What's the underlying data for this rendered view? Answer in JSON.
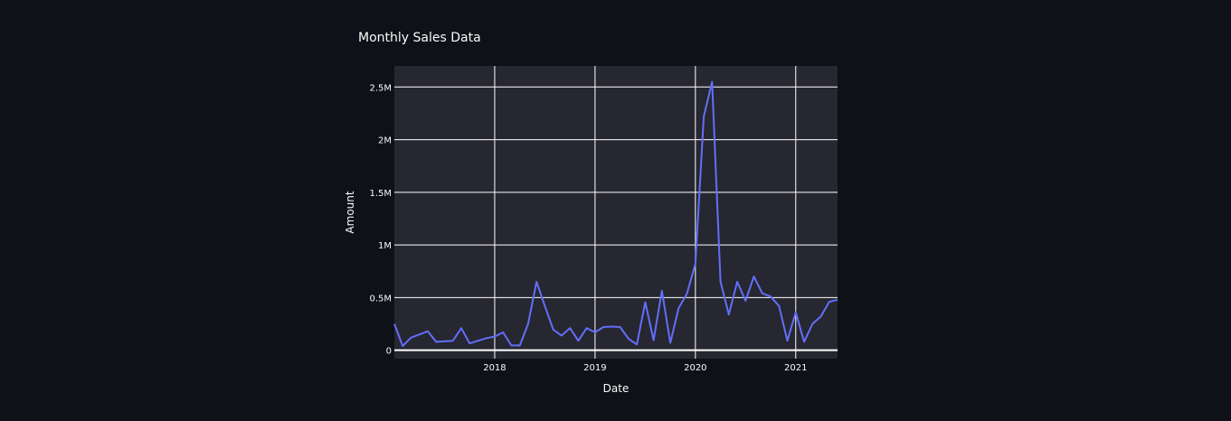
{
  "chart_data": {
    "type": "line",
    "title": "Monthly Sales Data",
    "xlabel": "Date",
    "ylabel": "Amount",
    "x_axis_type": "date",
    "xlim": [
      "2017-01",
      "2021-06"
    ],
    "ylim": [
      -80000,
      2700000
    ],
    "grid": true,
    "legend": "none",
    "x_ticks": [
      {
        "value": "2018-01",
        "label": "2018"
      },
      {
        "value": "2019-01",
        "label": "2019"
      },
      {
        "value": "2020-01",
        "label": "2020"
      },
      {
        "value": "2021-01",
        "label": "2021"
      }
    ],
    "y_ticks": [
      {
        "value": 0,
        "label": "0"
      },
      {
        "value": 500000,
        "label": "0.5M"
      },
      {
        "value": 1000000,
        "label": "1M"
      },
      {
        "value": 1500000,
        "label": "1.5M"
      },
      {
        "value": 2000000,
        "label": "2M"
      },
      {
        "value": 2500000,
        "label": "2.5M"
      }
    ],
    "colors": {
      "page_background": "#0e1117",
      "plot_background": "#262730",
      "grid": "#ffffff",
      "zero_line": "#ffffff",
      "line": "#636efa",
      "text": "#fafafa"
    },
    "series": [
      {
        "x": [
          "2017-01",
          "2017-02",
          "2017-03",
          "2017-04",
          "2017-05",
          "2017-06",
          "2017-07",
          "2017-08",
          "2017-09",
          "2017-10",
          "2017-11",
          "2017-12",
          "2018-01",
          "2018-02",
          "2018-03",
          "2018-04",
          "2018-05",
          "2018-06",
          "2018-07",
          "2018-08",
          "2018-09",
          "2018-10",
          "2018-11",
          "2018-12",
          "2019-01",
          "2019-02",
          "2019-03",
          "2019-04",
          "2019-05",
          "2019-06",
          "2019-07",
          "2019-08",
          "2019-09",
          "2019-10",
          "2019-11",
          "2019-12",
          "2020-01",
          "2020-02",
          "2020-03",
          "2020-04",
          "2020-05",
          "2020-06",
          "2020-07",
          "2020-08",
          "2020-09",
          "2020-10",
          "2020-11",
          "2020-12",
          "2021-01",
          "2021-02",
          "2021-03",
          "2021-04",
          "2021-05",
          "2021-06"
        ],
        "y": [
          250000,
          40000,
          120000,
          150000,
          180000,
          80000,
          85000,
          90000,
          210000,
          65000,
          90000,
          115000,
          130000,
          170000,
          45000,
          45000,
          250000,
          650000,
          420000,
          195000,
          140000,
          210000,
          90000,
          210000,
          170000,
          220000,
          225000,
          220000,
          110000,
          55000,
          455000,
          95000,
          565000,
          70000,
          400000,
          540000,
          820000,
          2220000,
          2550000,
          650000,
          340000,
          650000,
          470000,
          700000,
          540000,
          510000,
          420000,
          90000,
          360000,
          80000,
          250000,
          320000,
          460000,
          480000
        ]
      }
    ]
  }
}
